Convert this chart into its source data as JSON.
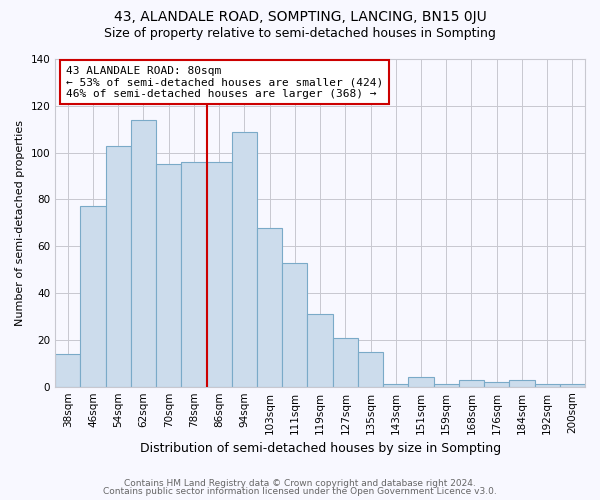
{
  "title": "43, ALANDALE ROAD, SOMPTING, LANCING, BN15 0JU",
  "subtitle": "Size of property relative to semi-detached houses in Sompting",
  "xlabel": "Distribution of semi-detached houses by size in Sompting",
  "ylabel": "Number of semi-detached properties",
  "categories": [
    "38sqm",
    "46sqm",
    "54sqm",
    "62sqm",
    "70sqm",
    "78sqm",
    "86sqm",
    "94sqm",
    "103sqm",
    "111sqm",
    "119sqm",
    "127sqm",
    "135sqm",
    "143sqm",
    "151sqm",
    "159sqm",
    "168sqm",
    "176sqm",
    "184sqm",
    "192sqm",
    "200sqm"
  ],
  "values": [
    14,
    77,
    103,
    114,
    95,
    96,
    96,
    109,
    68,
    53,
    31,
    21,
    15,
    1,
    4,
    1,
    3,
    2,
    3,
    1,
    1
  ],
  "bar_color": "#ccdcec",
  "bar_edgecolor": "#7aaac8",
  "vline_color": "#cc0000",
  "annotation_title": "43 ALANDALE ROAD: 80sqm",
  "annotation_line2": "← 53% of semi-detached houses are smaller (424)",
  "annotation_line3": "46% of semi-detached houses are larger (368) →",
  "annotation_box_edgecolor": "#cc0000",
  "ylim": [
    0,
    140
  ],
  "yticks": [
    0,
    20,
    40,
    60,
    80,
    100,
    120,
    140
  ],
  "grid_color": "#c8c8d0",
  "background_color": "#f8f8ff",
  "footer1": "Contains HM Land Registry data © Crown copyright and database right 2024.",
  "footer2": "Contains public sector information licensed under the Open Government Licence v3.0.",
  "title_fontsize": 10,
  "subtitle_fontsize": 9,
  "xlabel_fontsize": 9,
  "ylabel_fontsize": 8,
  "tick_fontsize": 7.5,
  "footer_fontsize": 6.5,
  "annotation_fontsize": 8
}
